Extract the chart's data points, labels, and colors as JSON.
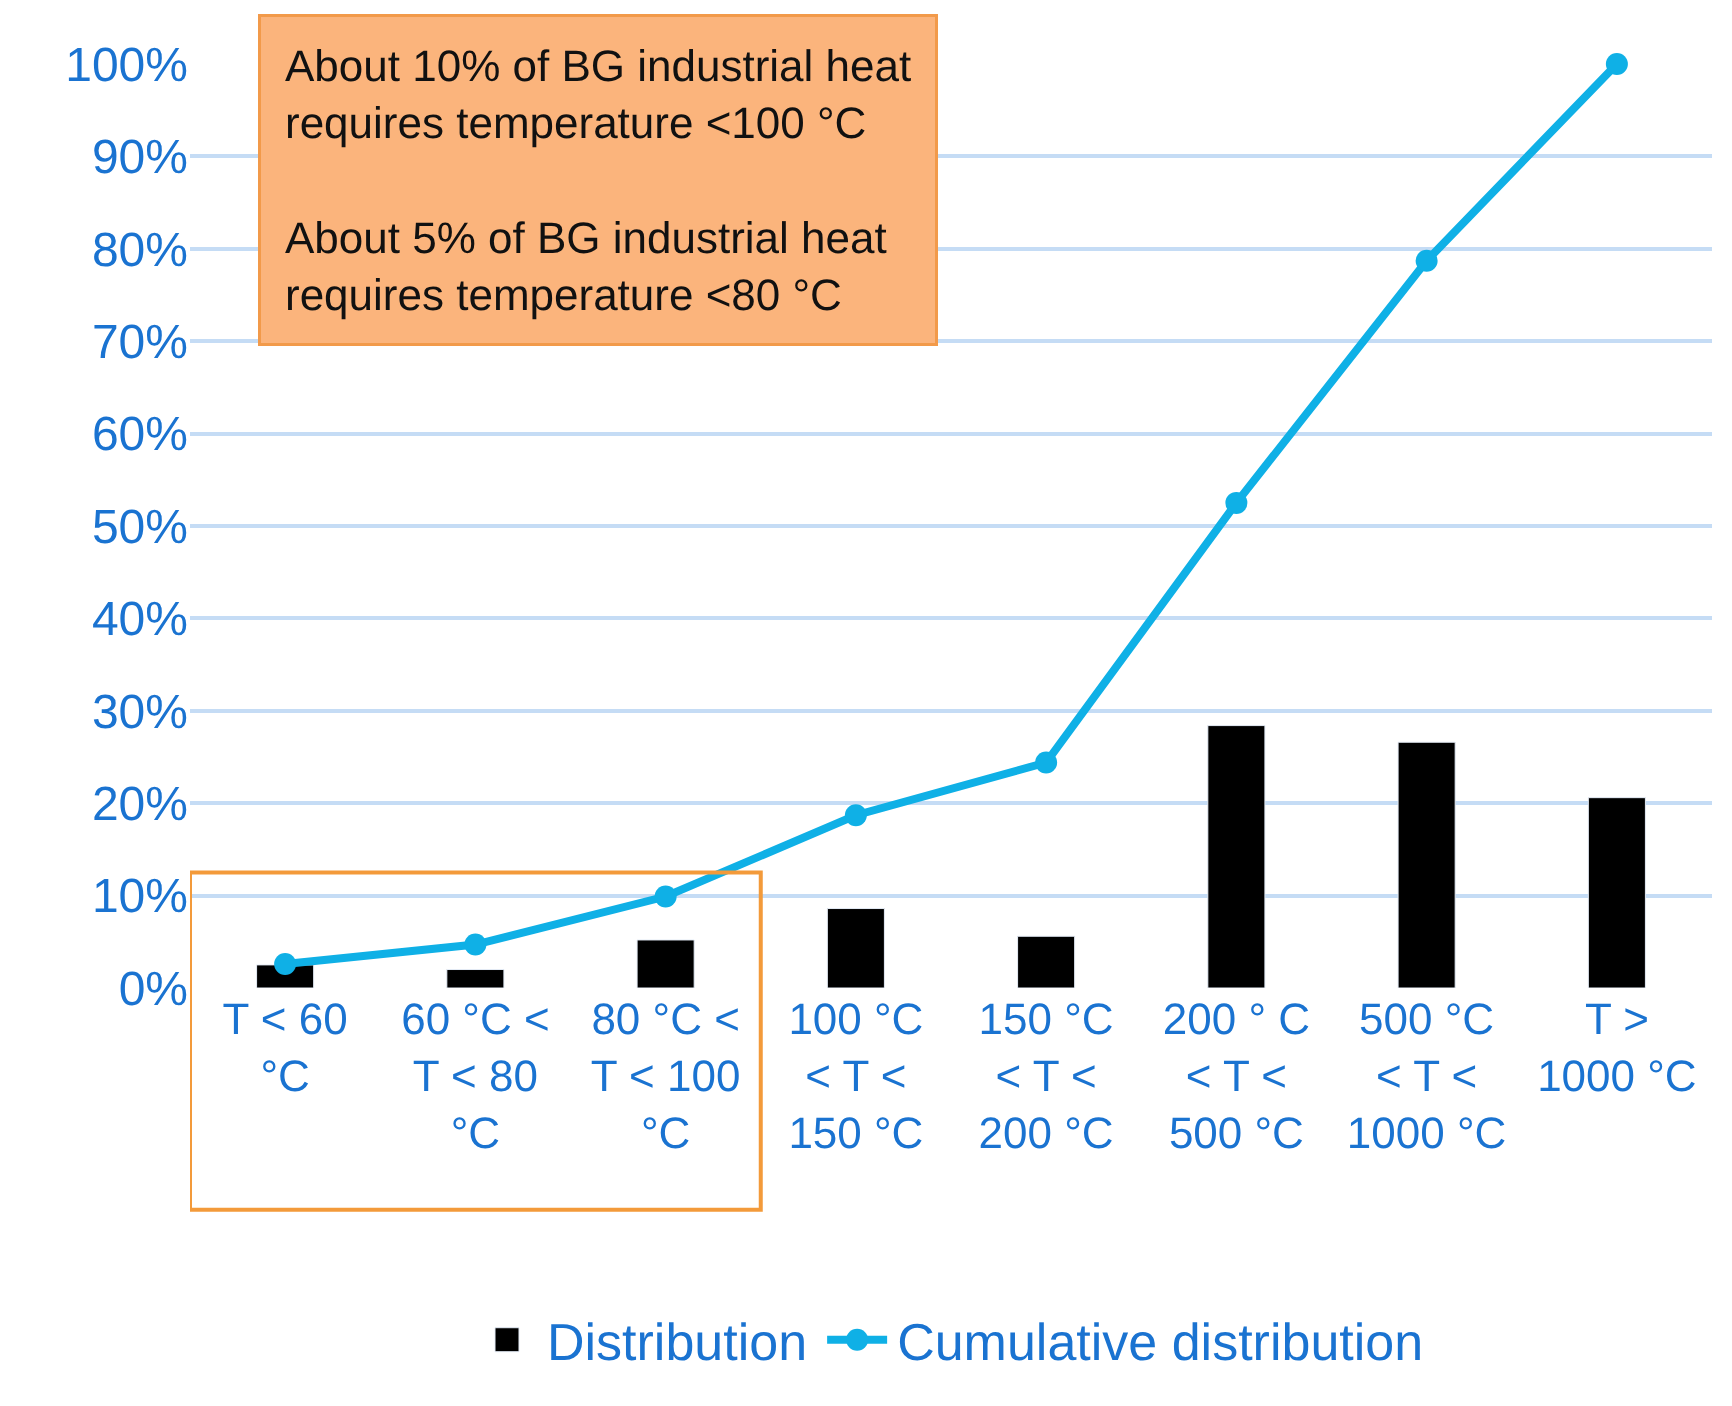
{
  "chart_data": {
    "type": "bar",
    "categories": [
      "T < 60 °C",
      "60 °C < T < 80 °C",
      "80 °C < T < 100 °C",
      "100 °C < T < 150 °C",
      "150 °C < T < 200 °C",
      "200 ° C < T < 500 °C",
      "500 °C < T < 1000 °C",
      "T > 1000 °C"
    ],
    "series": [
      {
        "name": "Distribution",
        "color": "#000000",
        "values": [
          2.5,
          2.0,
          5.2,
          8.6,
          5.6,
          28.4,
          26.6,
          20.6
        ]
      },
      {
        "name": "Cumulative distribution",
        "type": "line",
        "color": "#0fb0e6",
        "values": [
          2.6,
          4.7,
          9.9,
          18.7,
          24.4,
          52.5,
          78.7,
          100
        ]
      }
    ],
    "ylim": [
      0,
      100
    ],
    "yticks": [
      {
        "value": 0,
        "label": "0%"
      },
      {
        "value": 10,
        "label": "10%"
      },
      {
        "value": 20,
        "label": "20%"
      },
      {
        "value": 30,
        "label": "30%"
      },
      {
        "value": 40,
        "label": "40%"
      },
      {
        "value": 50,
        "label": "50%"
      },
      {
        "value": 60,
        "label": "60%"
      },
      {
        "value": 70,
        "label": "70%"
      },
      {
        "value": 80,
        "label": "80%"
      },
      {
        "value": 90,
        "label": "90%"
      },
      {
        "value": 100,
        "label": "100%"
      }
    ],
    "grid": "y",
    "legend": "bottom",
    "marker": "circle",
    "line_style": "solid",
    "annotations": [
      "About 10% of BG industrial heat requires temperature <100 °C",
      "About 5% of BG industrial heat requires temperature <80 °C"
    ]
  }
}
